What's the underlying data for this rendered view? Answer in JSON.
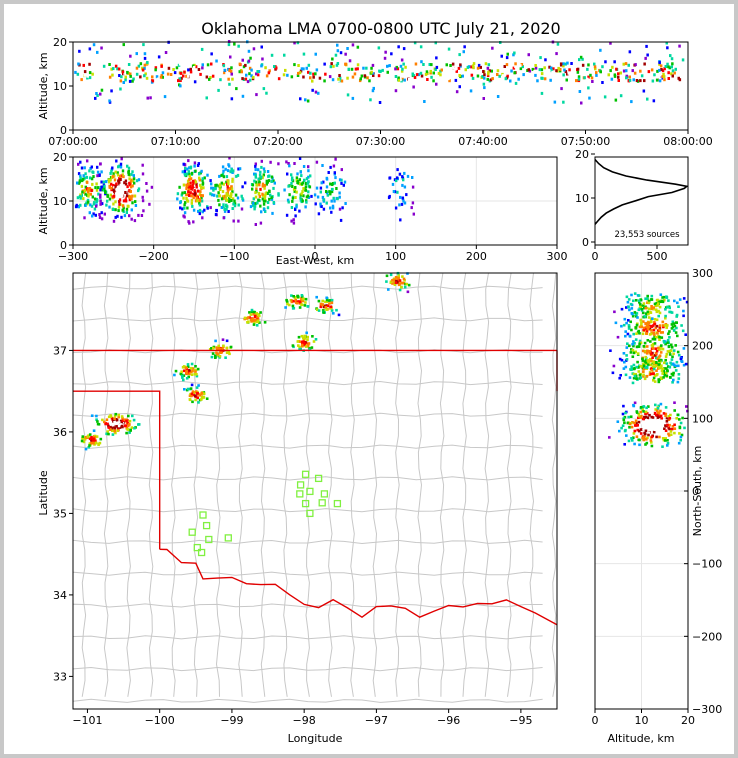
{
  "title": "Oklahoma LMA 0700-0800 UTC July 21, 2020",
  "chart_data": [
    {
      "type": "heatmap",
      "panel": "altitude-vs-time",
      "ylabel": "Altitude, km",
      "xlim": [
        "07:00:00",
        "08:00:00"
      ],
      "ylim": [
        0,
        20
      ],
      "xticks": [
        "07:00:00",
        "07:10:00",
        "07:20:00",
        "07:30:00",
        "07:40:00",
        "07:50:00",
        "08:00:00"
      ],
      "yticks": [
        "0",
        "10",
        "20"
      ],
      "band_core_km": [
        11,
        15
      ],
      "band_full_km": [
        6,
        20
      ]
    },
    {
      "type": "heatmap",
      "panel": "altitude-vs-east-west",
      "ylabel": "Altitude, km",
      "xlabel": "East-West, km",
      "xlim": [
        -300,
        300
      ],
      "ylim": [
        0,
        20
      ],
      "xticks": [
        "−300",
        "−200",
        "−100",
        "0",
        "100",
        "200",
        "300"
      ],
      "yticks": [
        "0",
        "10",
        "20"
      ],
      "clusters_x_km": [
        -280,
        -240,
        -150,
        -110,
        -65,
        -20,
        20,
        105
      ]
    },
    {
      "type": "line",
      "panel": "altitude-histogram",
      "annotation": "23,553 sources",
      "xlim": [
        0,
        750
      ],
      "ylim": [
        0,
        20
      ],
      "xticks": [
        "0",
        "500"
      ],
      "yticks": [
        "0",
        "10",
        "20"
      ],
      "profile": [
        {
          "alt": 4.3,
          "count": 0
        },
        {
          "alt": 5,
          "count": 20
        },
        {
          "alt": 6,
          "count": 50
        },
        {
          "alt": 7,
          "count": 90
        },
        {
          "alt": 8,
          "count": 150
        },
        {
          "alt": 9,
          "count": 220
        },
        {
          "alt": 10,
          "count": 330
        },
        {
          "alt": 11,
          "count": 430
        },
        {
          "alt": 12,
          "count": 620
        },
        {
          "alt": 13,
          "count": 720
        },
        {
          "alt": 13.5,
          "count": 740
        },
        {
          "alt": 14,
          "count": 650
        },
        {
          "alt": 15,
          "count": 420
        },
        {
          "alt": 16,
          "count": 250
        },
        {
          "alt": 17,
          "count": 140
        },
        {
          "alt": 18,
          "count": 70
        },
        {
          "alt": 19,
          "count": 30
        },
        {
          "alt": 20,
          "count": 0
        }
      ]
    },
    {
      "type": "scatter",
      "panel": "plan-view-map",
      "xlabel": "Longitude",
      "ylabel": "Latitude",
      "xlim": [
        -101.2,
        -94.5
      ],
      "ylim": [
        32.6,
        37.95
      ],
      "xticks": [
        "−101",
        "−100",
        "−99",
        "−98",
        "−97",
        "−96",
        "−95"
      ],
      "yticks": [
        "33",
        "34",
        "35",
        "36",
        "37"
      ],
      "source_clusters": [
        {
          "lon": -100.6,
          "lat": 36.1
        },
        {
          "lon": -100.95,
          "lat": 35.9
        },
        {
          "lon": -99.6,
          "lat": 36.75
        },
        {
          "lon": -99.5,
          "lat": 36.45
        },
        {
          "lon": -99.15,
          "lat": 37.0
        },
        {
          "lon": -98.7,
          "lat": 37.4
        },
        {
          "lon": -98.1,
          "lat": 37.6
        },
        {
          "lon": -98.0,
          "lat": 37.1
        },
        {
          "lon": -97.7,
          "lat": 37.55
        },
        {
          "lon": -96.7,
          "lat": 37.85
        }
      ],
      "stations": [
        {
          "lon": -99.4,
          "lat": 34.98
        },
        {
          "lon": -99.35,
          "lat": 34.85
        },
        {
          "lon": -99.55,
          "lat": 34.77
        },
        {
          "lon": -99.32,
          "lat": 34.68
        },
        {
          "lon": -99.48,
          "lat": 34.58
        },
        {
          "lon": -99.42,
          "lat": 34.52
        },
        {
          "lon": -99.05,
          "lat": 34.7
        },
        {
          "lon": -97.98,
          "lat": 35.48
        },
        {
          "lon": -98.05,
          "lat": 35.35
        },
        {
          "lon": -97.8,
          "lat": 35.43
        },
        {
          "lon": -97.92,
          "lat": 35.27
        },
        {
          "lon": -98.06,
          "lat": 35.24
        },
        {
          "lon": -97.72,
          "lat": 35.24
        },
        {
          "lon": -97.98,
          "lat": 35.12
        },
        {
          "lon": -97.75,
          "lat": 35.13
        },
        {
          "lon": -97.54,
          "lat": 35.12
        },
        {
          "lon": -97.92,
          "lat": 35.0
        }
      ]
    },
    {
      "type": "heatmap",
      "panel": "north-south-vs-altitude",
      "xlabel": "Altitude, km",
      "ylabel": "North-South, km",
      "xlim": [
        0,
        20
      ],
      "ylim": [
        -300,
        300
      ],
      "xticks": [
        "0",
        "10",
        "20"
      ],
      "yticks": [
        "−300",
        "−200",
        "−100",
        "0",
        "100",
        "200",
        "300"
      ],
      "clusters_y_km": [
        90,
        165,
        190,
        225,
        255
      ]
    }
  ],
  "colors": {
    "state_border": "#e00000",
    "county_lines": "#c8c8c8",
    "station": "#80f040",
    "density_scale": [
      "#8800cc",
      "#0000ff",
      "#00a0ff",
      "#00d8a0",
      "#00c000",
      "#c8e000",
      "#ff8000",
      "#ff0000",
      "#a00000",
      "#ffffff"
    ]
  }
}
